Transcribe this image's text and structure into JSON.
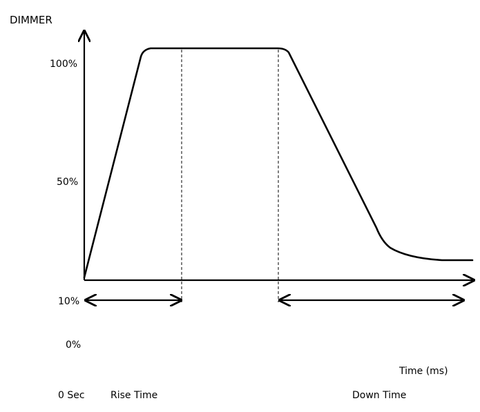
{
  "chart_data": {
    "type": "line",
    "title": "DIMMER",
    "xlabel": "Time (ms)",
    "ylabel": "",
    "y_tick_labels": [
      "100%",
      "50%",
      "10%",
      "0%"
    ],
    "x_bottom_labels": [
      "0 Sec",
      "Rise Time",
      "Down Time"
    ],
    "segments": [
      "Rise Time",
      "Down Time"
    ],
    "colors": {
      "line": "#000000",
      "background": "#ffffff"
    }
  }
}
